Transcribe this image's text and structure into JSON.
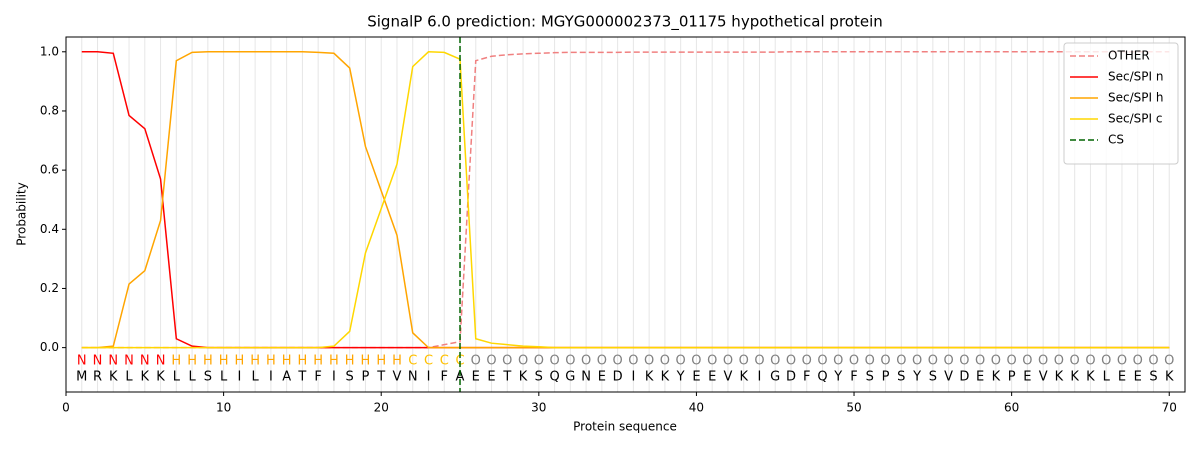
{
  "chart_data": {
    "type": "line",
    "title": "SignalP 6.0 prediction: MGYG000002373_01175 hypothetical protein",
    "x_label": "Protein sequence",
    "y_label": "Probability",
    "xlim": [
      0,
      71
    ],
    "ylim": [
      -0.15,
      1.05
    ],
    "xticks": [
      0,
      10,
      20,
      30,
      40,
      50,
      60,
      70
    ],
    "yticks": [
      {
        "value": 0,
        "label": "0.0"
      },
      {
        "value": 0.2,
        "label": "0.2"
      },
      {
        "value": 0.4,
        "label": "0.4"
      },
      {
        "value": 0.6,
        "label": "0.6"
      },
      {
        "value": 0.8,
        "label": "0.8"
      },
      {
        "value": 1.0,
        "label": "1.0"
      }
    ],
    "legend": "upper right",
    "x": [
      1,
      2,
      3,
      4,
      5,
      6,
      7,
      8,
      9,
      10,
      11,
      12,
      13,
      14,
      15,
      16,
      17,
      18,
      19,
      20,
      21,
      22,
      23,
      24,
      25,
      26,
      27,
      28,
      29,
      30,
      31,
      32,
      33,
      34,
      35,
      36,
      37,
      38,
      39,
      40,
      41,
      42,
      43,
      44,
      45,
      46,
      47,
      48,
      49,
      50,
      51,
      52,
      53,
      54,
      55,
      56,
      57,
      58,
      59,
      60,
      61,
      62,
      63,
      64,
      65,
      66,
      67,
      68,
      69,
      70
    ],
    "sequence": [
      "M",
      "R",
      "K",
      "L",
      "K",
      "K",
      "L",
      "L",
      "S",
      "L",
      "I",
      "L",
      "I",
      "A",
      "T",
      "F",
      "I",
      "S",
      "P",
      "T",
      "V",
      "N",
      "I",
      "F",
      "A",
      "E",
      "E",
      "T",
      "K",
      "S",
      "Q",
      "G",
      "N",
      "E",
      "D",
      "I",
      "K",
      "K",
      "Y",
      "E",
      "E",
      "V",
      "K",
      "I",
      "G",
      "D",
      "F",
      "Q",
      "Y",
      "F",
      "S",
      "P",
      "S",
      "Y",
      "S",
      "V",
      "D",
      "E",
      "K",
      "P",
      "E",
      "V",
      "K",
      "K",
      "K",
      "L",
      "E",
      "E",
      "S",
      "K"
    ],
    "region_labels": [
      "N",
      "N",
      "N",
      "N",
      "N",
      "N",
      "H",
      "H",
      "H",
      "H",
      "H",
      "H",
      "H",
      "H",
      "H",
      "H",
      "H",
      "H",
      "H",
      "H",
      "H",
      "C",
      "C",
      "C",
      "C",
      "O",
      "O",
      "O",
      "O",
      "O",
      "O",
      "O",
      "O",
      "O",
      "O",
      "O",
      "O",
      "O",
      "O",
      "O",
      "O",
      "O",
      "O",
      "O",
      "O",
      "O",
      "O",
      "O",
      "O",
      "O",
      "O",
      "O",
      "O",
      "O",
      "O",
      "O",
      "O",
      "O",
      "O",
      "O",
      "O",
      "O",
      "O",
      "O",
      "O",
      "O",
      "O",
      "O",
      "O",
      "O"
    ],
    "region_colors": {
      "N": "#ff0000",
      "H": "#ffa500",
      "C": "#ffc000",
      "O": "#808080"
    },
    "series": [
      {
        "name": "OTHER",
        "color": "#f08080",
        "dashed": true,
        "values": [
          0,
          0,
          0,
          0,
          0,
          0,
          0,
          0,
          0,
          0,
          0,
          0,
          0,
          0,
          0,
          0,
          0,
          0,
          0,
          0,
          0,
          0,
          0,
          0.01,
          0.02,
          0.97,
          0.985,
          0.99,
          0.993,
          0.995,
          0.997,
          0.998,
          0.998,
          0.998,
          0.998,
          0.999,
          0.999,
          0.999,
          0.999,
          0.999,
          0.999,
          0.999,
          0.999,
          0.999,
          0.999,
          1,
          1,
          1,
          1,
          1,
          1,
          1,
          1,
          1,
          1,
          1,
          1,
          1,
          1,
          1,
          1,
          1,
          1,
          1,
          1,
          1,
          1,
          1,
          1,
          1
        ]
      },
      {
        "name": "Sec/SPI n",
        "color": "#ff0000",
        "dashed": false,
        "values": [
          1,
          1,
          0.995,
          0.785,
          0.74,
          0.57,
          0.03,
          0.005,
          0,
          0,
          0,
          0,
          0,
          0,
          0,
          0,
          0,
          0,
          0,
          0,
          0,
          0,
          0,
          0,
          0,
          0,
          0,
          0,
          0,
          0,
          0,
          0,
          0,
          0,
          0,
          0,
          0,
          0,
          0,
          0,
          0,
          0,
          0,
          0,
          0,
          0,
          0,
          0,
          0,
          0,
          0,
          0,
          0,
          0,
          0,
          0,
          0,
          0,
          0,
          0,
          0,
          0,
          0,
          0,
          0,
          0,
          0,
          0,
          0,
          0
        ]
      },
      {
        "name": "Sec/SPI h",
        "color": "#ffa500",
        "dashed": false,
        "values": [
          0,
          0,
          0.005,
          0.215,
          0.26,
          0.43,
          0.97,
          0.998,
          1,
          1,
          1,
          1,
          1,
          1,
          1,
          0.998,
          0.995,
          0.945,
          0.68,
          0.53,
          0.38,
          0.05,
          0,
          0,
          0,
          0,
          0,
          0,
          0,
          0,
          0,
          0,
          0,
          0,
          0,
          0,
          0,
          0,
          0,
          0,
          0,
          0,
          0,
          0,
          0,
          0,
          0,
          0,
          0,
          0,
          0,
          0,
          0,
          0,
          0,
          0,
          0,
          0,
          0,
          0,
          0,
          0,
          0,
          0,
          0,
          0,
          0,
          0,
          0,
          0
        ]
      },
      {
        "name": "Sec/SPI c",
        "color": "#ffd700",
        "dashed": false,
        "values": [
          0,
          0,
          0,
          0,
          0,
          0,
          0,
          0,
          0,
          0,
          0,
          0,
          0,
          0,
          0,
          0,
          0.005,
          0.055,
          0.32,
          0.47,
          0.62,
          0.95,
          1,
          0.998,
          0.975,
          0.03,
          0.015,
          0.01,
          0.005,
          0.003,
          0,
          0,
          0,
          0,
          0,
          0,
          0,
          0,
          0,
          0,
          0,
          0,
          0,
          0,
          0,
          0,
          0,
          0,
          0,
          0,
          0,
          0,
          0,
          0,
          0,
          0,
          0,
          0,
          0,
          0,
          0,
          0,
          0,
          0,
          0,
          0,
          0,
          0,
          0,
          0
        ]
      }
    ],
    "markers": [
      {
        "name": "CS",
        "color": "#006400",
        "x": 25
      }
    ]
  }
}
